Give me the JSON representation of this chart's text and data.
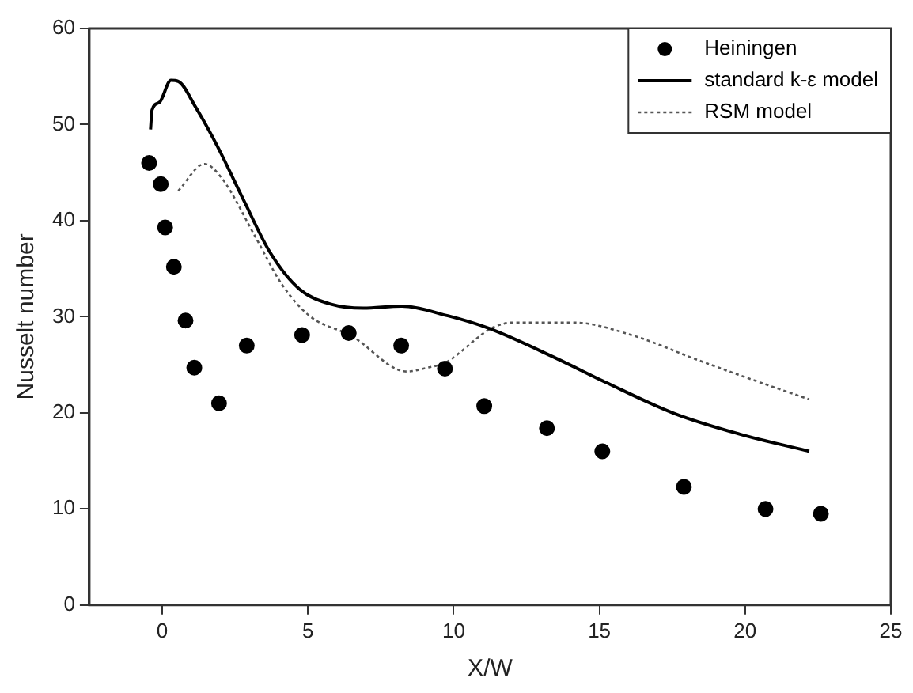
{
  "chart_data": {
    "type": "scatter",
    "xlabel": "X/W",
    "ylabel": "Nusselt number",
    "xlim": [
      -2.5,
      25
    ],
    "xticks": [
      0,
      5,
      10,
      15,
      20,
      25
    ],
    "ylim": [
      0,
      60
    ],
    "yticks": [
      0,
      10,
      20,
      30,
      40,
      50,
      60
    ],
    "grid": false,
    "legend": "top right",
    "series": [
      {
        "name": "Heiningen",
        "marker": "circle",
        "color": "#000000",
        "x": [
          -0.45,
          -0.05,
          0.1,
          0.4,
          0.8,
          1.1,
          1.95,
          2.9,
          4.8,
          6.4,
          8.2,
          9.7,
          11.05,
          13.2,
          15.1,
          17.9,
          20.7,
          22.6
        ],
        "values": [
          46.0,
          43.8,
          39.3,
          35.2,
          29.6,
          24.7,
          21.0,
          27.0,
          28.1,
          28.3,
          27.0,
          24.6,
          20.7,
          18.4,
          16.0,
          12.3,
          10.0,
          9.5
        ]
      },
      {
        "name": "standard k-ε model",
        "type": "line",
        "line_style": "solid",
        "color": "#000000",
        "x": [
          -0.4,
          -0.35,
          -0.1,
          0.3,
          0.55,
          1.15,
          1.9,
          2.8,
          3.7,
          4.7,
          5.8,
          6.9,
          8.2,
          9.8,
          11.2,
          13.5,
          15.2,
          17.6,
          19.8,
          22.2
        ],
        "values": [
          49.5,
          51.5,
          52.3,
          54.6,
          54.5,
          51.8,
          47.7,
          42.1,
          36.7,
          32.9,
          31.3,
          30.9,
          31.1,
          30.1,
          28.8,
          25.7,
          23.2,
          19.9,
          17.8,
          16.0
        ]
      },
      {
        "name": "RSM model",
        "type": "line",
        "line_style": "dotted",
        "color": "#555555",
        "x": [
          0.55,
          1.45,
          2.05,
          3.2,
          4.1,
          5.05,
          6.5,
          8.4,
          9.1,
          9.7,
          11.3,
          12.05,
          14.1,
          16.2,
          18.2,
          20.2,
          22.2
        ],
        "values": [
          43.1,
          45.9,
          44.4,
          38.3,
          33.4,
          30.1,
          28.0,
          24.3,
          24.7,
          25.2,
          28.8,
          29.4,
          29.4,
          28.0,
          25.7,
          23.5,
          21.4
        ]
      }
    ]
  }
}
